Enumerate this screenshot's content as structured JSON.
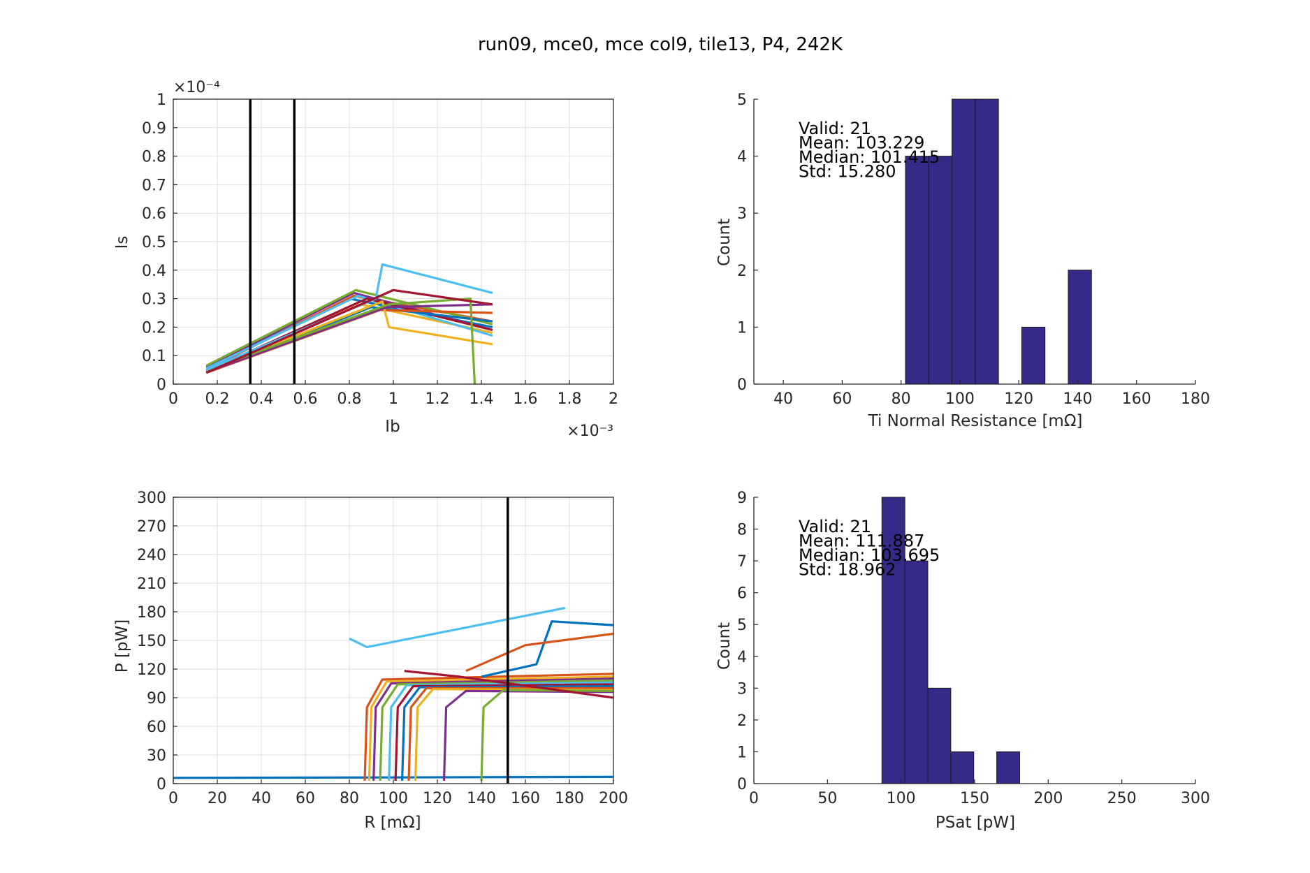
{
  "title": "run09, mce0, mce col9, tile13, P4, 242K",
  "colors": {
    "series": [
      "#0072BD",
      "#D95319",
      "#EDB120",
      "#7E2F8E",
      "#77AC30",
      "#4DBEEE",
      "#A2142F"
    ],
    "hist_fill": "#352A87",
    "vline": "#000000",
    "grid": "#DFDFDF"
  },
  "chart_data": [
    {
      "id": "iv",
      "type": "line",
      "xlabel": "Ib",
      "ylabel": "Is",
      "xlim": [
        0,
        0.002
      ],
      "ylim": [
        0,
        0.0001
      ],
      "xticks": [
        "0",
        "0.2",
        "0.4",
        "0.6",
        "0.8",
        "1",
        "1.2",
        "1.4",
        "1.6",
        "1.8",
        "2"
      ],
      "yticks": [
        "0",
        "0.1",
        "0.2",
        "0.3",
        "0.4",
        "0.5",
        "0.6",
        "0.7",
        "0.8",
        "0.9",
        "1"
      ],
      "x_exponent": "×10⁻³",
      "y_exponent": "×10⁻⁴",
      "grid": true,
      "vlines": [
        0.00035,
        0.00055
      ],
      "series": [
        {
          "x": [
            0.00015,
            0.0008,
            0.00145
          ],
          "y": [
            5.5e-06,
            3e-05,
            2e-05
          ]
        },
        {
          "x": [
            0.00015,
            0.00082,
            0.00145
          ],
          "y": [
            5e-06,
            3.1e-05,
            2.2e-05
          ]
        },
        {
          "x": [
            0.00015,
            0.00085,
            0.00145
          ],
          "y": [
            4.5e-06,
            2.8e-05,
            1.8e-05
          ]
        },
        {
          "x": [
            0.00015,
            0.00082,
            0.00145
          ],
          "y": [
            6e-06,
            3.2e-05,
            1.9e-05
          ]
        },
        {
          "x": [
            0.00015,
            0.00083,
            0.00145
          ],
          "y": [
            6.5e-06,
            3.3e-05,
            2.1e-05
          ]
        },
        {
          "x": [
            0.00015,
            0.00084,
            0.00145
          ],
          "y": [
            5.5e-06,
            3.1e-05,
            1.7e-05
          ]
        },
        {
          "x": [
            0.00015,
            0.00088,
            0.00145
          ],
          "y": [
            4.5e-06,
            3e-05,
            1.9e-05
          ]
        },
        {
          "x": [
            0.00015,
            0.0009,
            0.00145
          ],
          "y": [
            4e-06,
            2.7e-05,
            2.2e-05
          ]
        },
        {
          "x": [
            0.00015,
            0.00094,
            0.00145
          ],
          "y": [
            4e-06,
            2.6e-05,
            2.5e-05
          ]
        },
        {
          "x": [
            0.00015,
            0.00095,
            0.00098,
            0.00145
          ],
          "y": [
            4.5e-06,
            2.9e-05,
            2e-05,
            1.4e-05
          ]
        },
        {
          "x": [
            0.00015,
            0.00097,
            0.00145
          ],
          "y": [
            4.2e-06,
            2.7e-05,
            2.8e-05
          ]
        },
        {
          "x": [
            0.00015,
            0.00098,
            0.00135,
            0.00137
          ],
          "y": [
            4.8e-06,
            2.8e-05,
            3e-05,
            0.0
          ]
        },
        {
          "x": [
            0.00015,
            0.00092,
            0.00095,
            0.00145
          ],
          "y": [
            5e-06,
            3e-05,
            4.2e-05,
            3.2e-05
          ]
        },
        {
          "x": [
            0.00015,
            0.001,
            0.00145
          ],
          "y": [
            4e-06,
            3.3e-05,
            2.8e-05
          ]
        }
      ]
    },
    {
      "id": "hist_rn",
      "type": "bar",
      "xlabel": "Ti Normal Resistance [mΩ]",
      "ylabel": "Count",
      "xlim": [
        30,
        180
      ],
      "ylim": [
        0,
        5
      ],
      "xticks": [
        "40",
        "60",
        "80",
        "100",
        "120",
        "140",
        "160",
        "180"
      ],
      "yticks": [
        "0",
        "1",
        "2",
        "3",
        "4",
        "5"
      ],
      "bin_width": 7.9,
      "bins": [
        {
          "x0": 81.5,
          "count": 4
        },
        {
          "x0": 89.4,
          "count": 4
        },
        {
          "x0": 97.3,
          "count": 5
        },
        {
          "x0": 105.2,
          "count": 5
        },
        {
          "x0": 121.0,
          "count": 1
        },
        {
          "x0": 136.8,
          "count": 2
        }
      ],
      "stats": [
        "Valid: 21",
        "Mean: 103.229",
        "Median: 101.415",
        "Std: 15.280"
      ]
    },
    {
      "id": "pr",
      "type": "line",
      "xlabel": "R [mΩ]",
      "ylabel": "P [pW]",
      "xlim": [
        0,
        200
      ],
      "ylim": [
        0,
        300
      ],
      "xticks": [
        "0",
        "20",
        "40",
        "60",
        "80",
        "100",
        "120",
        "140",
        "160",
        "180",
        "200"
      ],
      "yticks": [
        "0",
        "30",
        "60",
        "90",
        "120",
        "150",
        "180",
        "210",
        "240",
        "270",
        "300"
      ],
      "grid": true,
      "vlines": [
        152
      ],
      "series": [
        {
          "x": [
            0,
            200
          ],
          "y": [
            6,
            7
          ]
        },
        {
          "x": [
            87,
            88,
            95,
            200
          ],
          "y": [
            3,
            80,
            109,
            115
          ]
        },
        {
          "x": [
            89,
            90,
            97,
            200
          ],
          "y": [
            3,
            80,
            107,
            112
          ]
        },
        {
          "x": [
            91,
            92,
            99,
            200
          ],
          "y": [
            3,
            80,
            105,
            110
          ]
        },
        {
          "x": [
            94,
            95,
            102,
            200
          ],
          "y": [
            3,
            80,
            104,
            108
          ]
        },
        {
          "x": [
            98,
            99,
            106,
            200
          ],
          "y": [
            3,
            80,
            103,
            106
          ]
        },
        {
          "x": [
            101,
            102,
            109,
            200
          ],
          "y": [
            3,
            80,
            102,
            104
          ]
        },
        {
          "x": [
            104,
            105,
            112,
            200
          ],
          "y": [
            3,
            80,
            101,
            102
          ]
        },
        {
          "x": [
            107,
            108,
            115,
            200
          ],
          "y": [
            3,
            80,
            100,
            100
          ]
        },
        {
          "x": [
            110,
            111,
            118,
            200
          ],
          "y": [
            3,
            80,
            99,
            98
          ]
        },
        {
          "x": [
            123,
            124,
            133,
            200
          ],
          "y": [
            3,
            80,
            97,
            96
          ]
        },
        {
          "x": [
            140,
            141,
            150,
            200
          ],
          "y": [
            3,
            80,
            98,
            97
          ]
        },
        {
          "x": [
            80,
            88,
            178
          ],
          "y": [
            152,
            143,
            184
          ]
        },
        {
          "x": [
            105,
            130,
            200
          ],
          "y": [
            118,
            112,
            90
          ]
        },
        {
          "x": [
            140,
            165,
            172,
            200
          ],
          "y": [
            112,
            125,
            170,
            166
          ]
        },
        {
          "x": [
            133,
            160,
            200
          ],
          "y": [
            118,
            145,
            157
          ]
        }
      ]
    },
    {
      "id": "hist_psat",
      "type": "bar",
      "xlabel": "PSat [pW]",
      "ylabel": "Count",
      "xlim": [
        0,
        300
      ],
      "ylim": [
        0,
        9
      ],
      "xticks": [
        "0",
        "50",
        "100",
        "150",
        "200",
        "250",
        "300"
      ],
      "yticks": [
        "0",
        "1",
        "2",
        "3",
        "4",
        "5",
        "6",
        "7",
        "8",
        "9"
      ],
      "bin_width": 15.6,
      "bins": [
        {
          "x0": 87.0,
          "count": 9
        },
        {
          "x0": 102.6,
          "count": 7
        },
        {
          "x0": 118.2,
          "count": 3
        },
        {
          "x0": 133.8,
          "count": 1
        },
        {
          "x0": 165.0,
          "count": 1
        }
      ],
      "stats": [
        "Valid: 21",
        "Mean: 111.887",
        "Median: 103.695",
        "Std: 18.962"
      ]
    }
  ]
}
